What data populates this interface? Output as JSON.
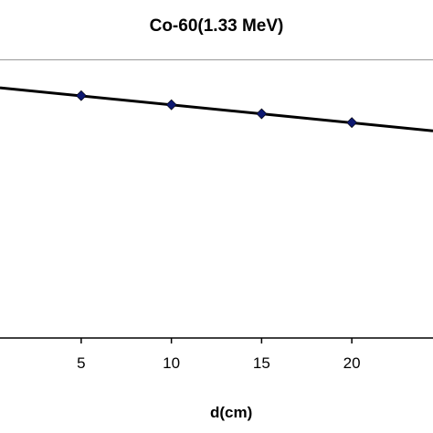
{
  "chart_data": {
    "type": "scatter",
    "title": "Co-60(1.33 MeV)",
    "xlabel": "d(cm)",
    "ylabel": "",
    "x_ticks": [
      "5",
      "10",
      "15",
      "20"
    ],
    "xlim": [
      0.5,
      24.5
    ],
    "ylim": [
      0,
      1.2
    ],
    "grid": false,
    "legend": "none",
    "series": [
      {
        "marker": "diamond",
        "marker_color": "#0d1870",
        "x": [
          5,
          10,
          15,
          20
        ],
        "y": [
          1.047,
          1.008,
          0.969,
          0.931
        ]
      }
    ],
    "trendline": {
      "x": [
        0.5,
        24.5
      ],
      "y": [
        1.081,
        0.895
      ],
      "color": "#000000"
    }
  }
}
